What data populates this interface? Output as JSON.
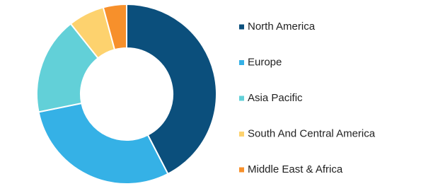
{
  "chart_data": {
    "type": "donut",
    "categories": [
      "North America",
      "Europe",
      "Asia Pacific",
      "South And Central America",
      "Middle East & Africa"
    ],
    "values": [
      42.4,
      29.4,
      17.5,
      6.5,
      4.2
    ],
    "colors": [
      "#0b4f7c",
      "#35b1e6",
      "#62d0d8",
      "#fdd26e",
      "#f7902b"
    ],
    "legend": "right"
  }
}
